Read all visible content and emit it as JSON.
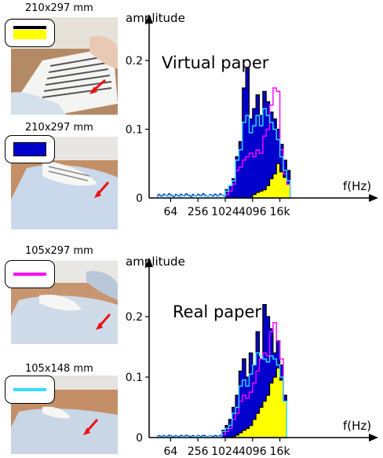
{
  "panels": [
    {
      "size_label": "210x297 mm",
      "legend_colors": [
        "#000000",
        "#ffff00"
      ],
      "photo_desc": "hand-pressing-flat-paper"
    },
    {
      "size_label": "210x297 mm",
      "legend_colors": [
        "#0000cc"
      ],
      "photo_desc": "paper-curled-on-arm"
    },
    {
      "size_label": "105x297 mm",
      "legend_colors": [
        "#ff00ff"
      ],
      "photo_desc": "half-paper-on-arm"
    },
    {
      "size_label": "105x148 mm",
      "legend_colors": [
        "#00e5ff"
      ],
      "photo_desc": "quarter-paper-on-arm"
    }
  ],
  "colors": {
    "yellow": "#ffff00",
    "blue": "#0000cc",
    "magenta": "#ff00ff",
    "cyan": "#33ddff",
    "arrow": "#ee1111"
  },
  "chart_data": [
    {
      "type": "area",
      "title": "Virtual paper",
      "ylabel": "amplitude",
      "xlabel": "f(Hz)",
      "xscale": "log2",
      "x_ticks": [
        {
          "value": 64,
          "label": "64"
        },
        {
          "value": 256,
          "label": "256"
        },
        {
          "value": 1024,
          "label": "1024"
        },
        {
          "value": 4096,
          "label": "4096"
        },
        {
          "value": 16384,
          "label": "16k"
        }
      ],
      "y_ticks": [
        {
          "value": 0,
          "label": "0"
        },
        {
          "value": 0.1,
          "label": "0.1"
        },
        {
          "value": 0.2,
          "label": "0.2"
        }
      ],
      "xlim": [
        16,
        32768
      ],
      "ylim": [
        0,
        0.24
      ],
      "log2_bin_edges": [
        10.0,
        10.25,
        10.5,
        10.75,
        11.0,
        11.25,
        11.5,
        11.75,
        12.0,
        12.25,
        12.5,
        12.75,
        13.0,
        13.25,
        13.5,
        13.75,
        14.0,
        14.25,
        14.5,
        14.75
      ],
      "series": [
        {
          "color": "#0000cc",
          "style": "fill",
          "values": [
            0.012,
            0.018,
            0.028,
            0.06,
            0.082,
            0.16,
            0.19,
            0.115,
            0.13,
            0.15,
            0.12,
            0.155,
            0.14,
            0.125,
            0.115,
            0.1,
            0.078,
            0.055,
            0.04
          ]
        },
        {
          "color": "#ffff00",
          "style": "fill",
          "values": [
            0.0,
            0.0,
            0.0,
            0.0,
            0.0,
            0.0,
            0.0,
            0.0,
            0.005,
            0.008,
            0.01,
            0.012,
            0.018,
            0.028,
            0.035,
            0.05,
            0.038,
            0.03,
            0.02
          ]
        },
        {
          "color": "#ff00ff",
          "style": "step",
          "values": [
            0.005,
            0.01,
            0.02,
            0.04,
            0.045,
            0.055,
            0.06,
            0.065,
            0.06,
            0.07,
            0.065,
            0.09,
            0.1,
            0.135,
            0.16,
            0.155,
            0.07,
            0.035,
            0.02
          ]
        },
        {
          "color": "#33ddff",
          "style": "step",
          "values": [
            0.01,
            0.018,
            0.025,
            0.055,
            0.07,
            0.11,
            0.12,
            0.095,
            0.105,
            0.12,
            0.105,
            0.13,
            0.12,
            0.11,
            0.1,
            0.085,
            0.06,
            0.04,
            0.025
          ]
        }
      ],
      "baseline_noise": {
        "from_log2": 5.0,
        "to_log2": 10.0,
        "level": 0.006
      }
    },
    {
      "type": "area",
      "title": "Real paper",
      "ylabel": "amplitude",
      "xlabel": "f(Hz)",
      "xscale": "log2",
      "x_ticks": [
        {
          "value": 64,
          "label": "64"
        },
        {
          "value": 256,
          "label": "256"
        },
        {
          "value": 1024,
          "label": "1024"
        },
        {
          "value": 4096,
          "label": "4096"
        },
        {
          "value": 16384,
          "label": "16k"
        }
      ],
      "y_ticks": [
        {
          "value": 0,
          "label": "0"
        },
        {
          "value": 0.1,
          "label": "0.1"
        },
        {
          "value": 0.2,
          "label": "0.2"
        }
      ],
      "xlim": [
        16,
        32768
      ],
      "ylim": [
        0,
        0.24
      ],
      "log2_bin_edges": [
        9.75,
        10.0,
        10.25,
        10.5,
        10.75,
        11.0,
        11.25,
        11.5,
        11.75,
        12.0,
        12.25,
        12.5,
        12.75,
        13.0,
        13.25,
        13.5,
        13.75,
        14.0,
        14.25,
        14.5
      ],
      "series": [
        {
          "color": "#0000cc",
          "style": "fill",
          "values": [
            0.012,
            0.02,
            0.03,
            0.05,
            0.07,
            0.11,
            0.13,
            0.1,
            0.14,
            0.12,
            0.175,
            0.13,
            0.22,
            0.2,
            0.18,
            0.14,
            0.16,
            0.12,
            0.07
          ]
        },
        {
          "color": "#ffff00",
          "style": "fill",
          "values": [
            0.0,
            0.0,
            0.0,
            0.002,
            0.004,
            0.008,
            0.012,
            0.015,
            0.02,
            0.03,
            0.04,
            0.05,
            0.06,
            0.07,
            0.09,
            0.1,
            0.115,
            0.095,
            0.06
          ]
        },
        {
          "color": "#ff00ff",
          "style": "step",
          "values": [
            0.005,
            0.01,
            0.015,
            0.03,
            0.04,
            0.06,
            0.07,
            0.065,
            0.075,
            0.09,
            0.11,
            0.13,
            0.14,
            0.135,
            0.175,
            0.19,
            0.16,
            0.13,
            0.06
          ]
        },
        {
          "color": "#33ddff",
          "style": "step",
          "values": [
            0.01,
            0.015,
            0.02,
            0.04,
            0.05,
            0.085,
            0.095,
            0.085,
            0.105,
            0.12,
            0.14,
            0.135,
            0.13,
            0.125,
            0.135,
            0.13,
            0.12,
            0.1,
            0.06
          ]
        }
      ],
      "baseline_noise": {
        "from_log2": 5.0,
        "to_log2": 9.75,
        "level": 0.004
      }
    }
  ]
}
